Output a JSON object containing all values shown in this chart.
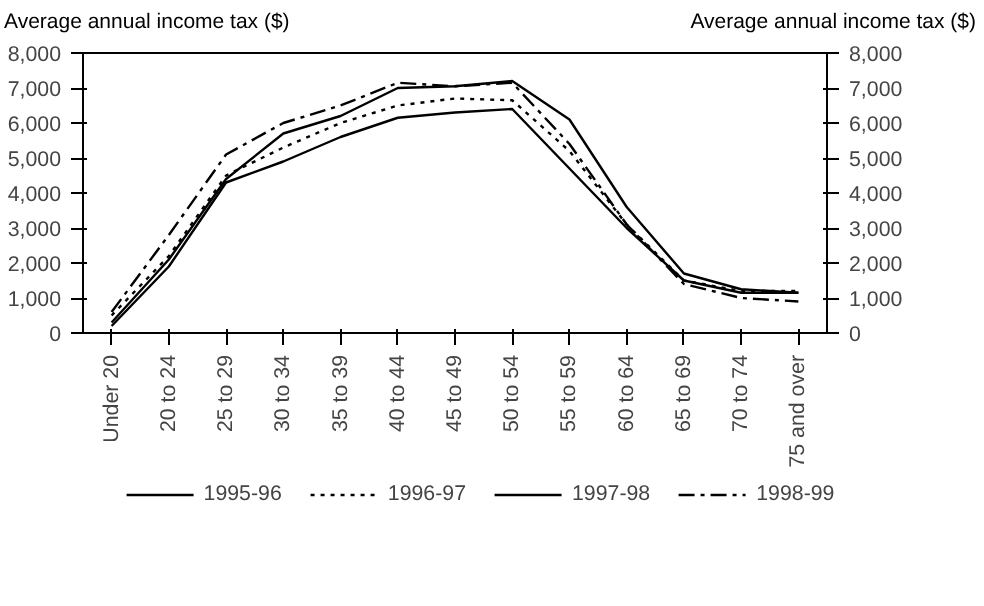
{
  "chart_data": {
    "type": "line",
    "ylabel": "Average annual income tax ($)",
    "y2label": "Average annual income tax ($)",
    "categories": [
      "Under 20",
      "20 to 24",
      "25 to 29",
      "30 to 34",
      "35 to 39",
      "40 to 44",
      "45 to 49",
      "50 to 54",
      "55 to 59",
      "60 to 64",
      "65 to 69",
      "70 to 74",
      "75 and over"
    ],
    "series": [
      {
        "name": "1995-96",
        "color": "#000000",
        "line_style": "solid",
        "values": [
          200,
          1900,
          4300,
          4900,
          5600,
          6150,
          6300,
          6400,
          4700,
          3000,
          1500,
          1150,
          1150
        ]
      },
      {
        "name": "1996-97",
        "color": "#000000",
        "line_style": "dotted",
        "values": [
          500,
          2200,
          4500,
          5300,
          6000,
          6500,
          6700,
          6650,
          5200,
          3100,
          1500,
          1200,
          1200
        ]
      },
      {
        "name": "1997-98",
        "color": "#000000",
        "line_style": "solid",
        "values": [
          300,
          2100,
          4400,
          5700,
          6200,
          7000,
          7050,
          7200,
          6100,
          3600,
          1700,
          1250,
          1150
        ]
      },
      {
        "name": "1998-99",
        "color": "#000000",
        "line_style": "dashdot",
        "values": [
          600,
          2800,
          5100,
          6000,
          6500,
          7150,
          7050,
          7150,
          5400,
          3100,
          1400,
          1000,
          900
        ]
      }
    ],
    "ylim": [
      0,
      8000
    ],
    "yticks": [
      0,
      {
        "value": 1000,
        "label": "1,000"
      },
      {
        "value": 2000,
        "label": "2,000"
      },
      {
        "value": 3000,
        "label": "3,000"
      },
      {
        "value": 4000,
        "label": "4,000"
      },
      {
        "value": 5000,
        "label": "5,000"
      },
      {
        "value": 6000,
        "label": "6,000"
      },
      {
        "value": 7000,
        "label": "7,000"
      },
      {
        "value": 8000,
        "label": "8,000"
      }
    ],
    "y2lim": [
      0,
      8000
    ],
    "y2ticks": [
      0,
      {
        "value": 1000,
        "label": "1,000"
      },
      {
        "value": 2000,
        "label": "2,000"
      },
      {
        "value": 3000,
        "label": "3,000"
      },
      {
        "value": 4000,
        "label": "4,000"
      },
      {
        "value": 5000,
        "label": "5,000"
      },
      {
        "value": 6000,
        "label": "6,000"
      },
      {
        "value": 7000,
        "label": "7,000"
      },
      {
        "value": 8000,
        "label": "8,000"
      }
    ],
    "grid": false,
    "legend": "bottom"
  }
}
